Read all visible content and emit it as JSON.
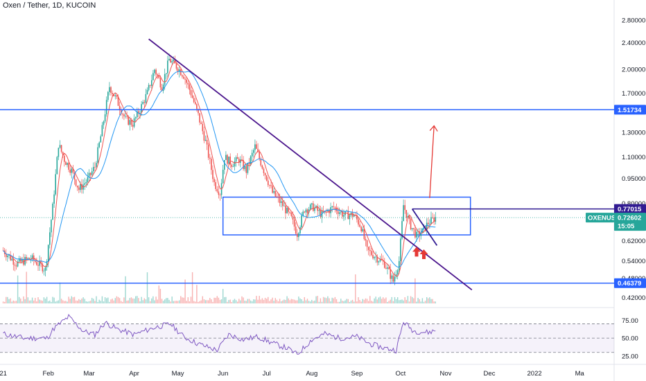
{
  "chart_data": {
    "type": "candlestick",
    "title": "Oxen / Tether, 1D, KUCOIN",
    "price_axis": {
      "scale": "log",
      "ticks": [
        "2.80000",
        "2.40000",
        "2.00000",
        "1.70000",
        "1.30000",
        "1.10000",
        "0.95000",
        "0.80000",
        "0.62000",
        "0.54000",
        "0.48000",
        "0.42000"
      ],
      "range": [
        0.4,
        2.95
      ]
    },
    "time_axis": {
      "labels": [
        "21",
        "Feb",
        "Mar",
        "Apr",
        "May",
        "Jun",
        "Jul",
        "Aug",
        "Sep",
        "Oct",
        "Nov",
        "Dec",
        "2022",
        "Ma"
      ],
      "label_dates": [
        "2021-01-01",
        "2021-02-01",
        "2021-03-01",
        "2021-04-01",
        "2021-05-01",
        "2021-06-01",
        "2021-07-01",
        "2021-08-01",
        "2021-09-01",
        "2021-10-01",
        "2021-11-01",
        "2021-12-01",
        "2022-01-01",
        "2022-02-01"
      ]
    },
    "price_labels": [
      {
        "text": "1.51734",
        "value": 1.51734,
        "color": "#2962ff"
      },
      {
        "text": "0.77015",
        "value": 0.77015,
        "color": "#311b92"
      },
      {
        "text": "OXENUSDT",
        "value": 0.72602,
        "color": "#26a69a"
      },
      {
        "text": "0.72602",
        "value": 0.72602,
        "color": "#26a69a"
      },
      {
        "text": "15:05",
        "value": 0.72602,
        "color": "#26a69a"
      },
      {
        "text": "0.46379",
        "value": 0.46379,
        "color": "#2962ff"
      }
    ],
    "horizontal_lines": [
      {
        "value": 1.51734,
        "color": "#2962ff"
      },
      {
        "value": 0.46379,
        "color": "#2962ff"
      },
      {
        "value": 0.77015,
        "color": "#311b92",
        "from": "2021-10-09"
      }
    ],
    "trendlines": [
      {
        "from": [
          "2021-04-11",
          2.46
        ],
        "to": [
          "2021-11-19",
          0.443
        ],
        "color": "#4a148c"
      },
      {
        "from": [
          "2021-10-09",
          0.77
        ],
        "to": [
          "2021-10-26",
          0.6
        ],
        "color": "#311b92"
      }
    ],
    "rectangles": [
      {
        "from": [
          "2021-06-01",
          0.645
        ],
        "to": [
          "2021-11-18",
          0.835
        ],
        "color": "#2962ff"
      }
    ],
    "arrows": [
      {
        "from": [
          "2021-10-21",
          0.83
        ],
        "to": [
          "2021-10-24",
          1.36
        ],
        "color": "#e53935"
      },
      {
        "at": [
          "2021-10-12",
          0.575
        ],
        "color": "#e53935"
      },
      {
        "at": [
          "2021-10-17",
          0.565
        ],
        "color": "#e53935"
      }
    ],
    "series": [
      {
        "name": "Price",
        "type": "candlestick",
        "up_color": "#26a69a",
        "down_color": "#ef5350",
        "keypoints": [
          [
            "2021-01-01",
            0.58
          ],
          [
            "2021-01-10",
            0.53
          ],
          [
            "2021-01-20",
            0.55
          ],
          [
            "2021-01-30",
            0.51
          ],
          [
            "2021-02-04",
            0.78
          ],
          [
            "2021-02-08",
            1.2
          ],
          [
            "2021-02-12",
            1.08
          ],
          [
            "2021-02-17",
            1.0
          ],
          [
            "2021-02-22",
            0.88
          ],
          [
            "2021-02-28",
            0.94
          ],
          [
            "2021-03-05",
            1.03
          ],
          [
            "2021-03-10",
            1.33
          ],
          [
            "2021-03-15",
            1.78
          ],
          [
            "2021-03-20",
            1.62
          ],
          [
            "2021-03-26",
            1.42
          ],
          [
            "2021-03-31",
            1.38
          ],
          [
            "2021-04-05",
            1.52
          ],
          [
            "2021-04-10",
            1.7
          ],
          [
            "2021-04-15",
            2.0
          ],
          [
            "2021-04-20",
            1.78
          ],
          [
            "2021-04-25",
            2.14
          ],
          [
            "2021-05-01",
            2.02
          ],
          [
            "2021-05-05",
            1.92
          ],
          [
            "2021-05-10",
            1.7
          ],
          [
            "2021-05-15",
            1.46
          ],
          [
            "2021-05-20",
            1.22
          ],
          [
            "2021-05-26",
            0.92
          ],
          [
            "2021-05-30",
            0.86
          ],
          [
            "2021-06-02",
            1.1
          ],
          [
            "2021-06-07",
            1.05
          ],
          [
            "2021-06-12",
            1.08
          ],
          [
            "2021-06-17",
            1.0
          ],
          [
            "2021-06-23",
            1.18
          ],
          [
            "2021-06-28",
            1.03
          ],
          [
            "2021-07-05",
            0.86
          ],
          [
            "2021-07-12",
            0.79
          ],
          [
            "2021-07-18",
            0.72
          ],
          [
            "2021-07-22",
            0.65
          ],
          [
            "2021-07-27",
            0.77
          ],
          [
            "2021-08-02",
            0.78
          ],
          [
            "2021-08-08",
            0.74
          ],
          [
            "2021-08-16",
            0.78
          ],
          [
            "2021-08-23",
            0.74
          ],
          [
            "2021-08-30",
            0.74
          ],
          [
            "2021-09-04",
            0.68
          ],
          [
            "2021-09-08",
            0.58
          ],
          [
            "2021-09-14",
            0.555
          ],
          [
            "2021-09-20",
            0.53
          ],
          [
            "2021-09-26",
            0.47
          ],
          [
            "2021-09-30",
            0.54
          ],
          [
            "2021-10-03",
            0.79
          ],
          [
            "2021-10-07",
            0.7
          ],
          [
            "2021-10-12",
            0.64
          ],
          [
            "2021-10-16",
            0.66
          ],
          [
            "2021-10-20",
            0.7
          ],
          [
            "2021-10-25",
            0.726
          ]
        ]
      },
      {
        "name": "MA fast",
        "type": "line",
        "color": "#ef5350"
      },
      {
        "name": "MA slow",
        "type": "line",
        "color": "#2196f3"
      },
      {
        "name": "Volume",
        "type": "histogram"
      },
      {
        "name": "RSI",
        "type": "line",
        "color": "#7e57c2",
        "keypoints": [
          [
            "2021-01-01",
            56
          ],
          [
            "2021-01-15",
            50
          ],
          [
            "2021-01-31",
            50
          ],
          [
            "2021-02-05",
            64
          ],
          [
            "2021-02-15",
            80
          ],
          [
            "2021-02-25",
            60
          ],
          [
            "2021-03-05",
            55
          ],
          [
            "2021-03-12",
            72
          ],
          [
            "2021-03-20",
            63
          ],
          [
            "2021-04-01",
            55
          ],
          [
            "2021-04-15",
            65
          ],
          [
            "2021-04-26",
            70
          ],
          [
            "2021-05-05",
            52
          ],
          [
            "2021-05-15",
            42
          ],
          [
            "2021-05-28",
            33
          ],
          [
            "2021-06-05",
            55
          ],
          [
            "2021-06-15",
            48
          ],
          [
            "2021-06-25",
            52
          ],
          [
            "2021-07-05",
            43
          ],
          [
            "2021-07-15",
            36
          ],
          [
            "2021-07-22",
            27
          ],
          [
            "2021-08-01",
            48
          ],
          [
            "2021-08-10",
            56
          ],
          [
            "2021-08-20",
            50
          ],
          [
            "2021-09-01",
            52
          ],
          [
            "2021-09-10",
            42
          ],
          [
            "2021-09-20",
            36
          ],
          [
            "2021-09-28",
            33
          ],
          [
            "2021-10-03",
            73
          ],
          [
            "2021-10-10",
            60
          ],
          [
            "2021-10-20",
            58
          ],
          [
            "2021-10-25",
            61
          ]
        ]
      }
    ],
    "rsi_axis": {
      "ticks": [
        "75.00",
        "50.00",
        "25.00"
      ],
      "range": [
        20,
        90
      ],
      "bands": [
        70,
        50,
        30
      ]
    }
  }
}
